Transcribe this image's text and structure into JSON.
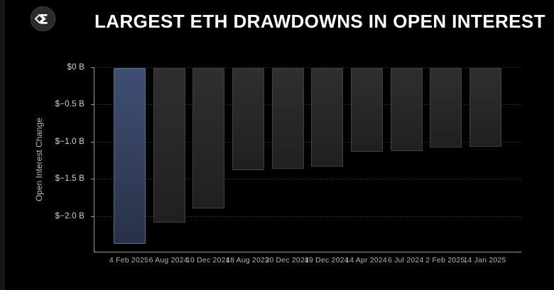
{
  "header": {
    "title": "LARGEST ETH DRAWDOWNS IN OPEN INTEREST",
    "logo_icon": "sigma-diamond-logo"
  },
  "chart_data": {
    "type": "bar",
    "title": "LARGEST ETH DRAWDOWNS IN OPEN INTEREST",
    "xlabel": "",
    "ylabel": "Open Interest Change",
    "categories": [
      "4 Feb 2025",
      "6 Aug 2024",
      "10 Dec 2024",
      "18 Aug 2023",
      "20 Dec 2024",
      "19 Dec 2024",
      "14 Apr 2024",
      "6 Jul 2024",
      "2 Feb 2025",
      "14 Jan 2025"
    ],
    "values": [
      -2.37,
      -2.08,
      -1.89,
      -1.37,
      -1.35,
      -1.33,
      -1.13,
      -1.12,
      -1.07,
      -1.06
    ],
    "unit": "B USD",
    "ylim": [
      -2.48,
      0
    ],
    "yticks": [
      {
        "v": 0,
        "label": "$0 B"
      },
      {
        "v": -0.5,
        "label": "$−0.5 B"
      },
      {
        "v": -1.0,
        "label": "$−1.0 B"
      },
      {
        "v": -1.5,
        "label": "$−1.5 B"
      },
      {
        "v": -2.0,
        "label": "$−2.0 B"
      }
    ],
    "grid": "horizontal-dotted",
    "legend": "none",
    "highlight_index": 0,
    "colors": {
      "background": "#000000",
      "bar_default": "#2a2a2a",
      "bar_highlight": "#3e4f73",
      "bar_highlight_border": "#5b6d96",
      "axis": "#9a9a9a",
      "tick_text": "#d2d2d2",
      "x_tick_text": "#b5b5b5",
      "title_text": "#ffffff"
    }
  }
}
